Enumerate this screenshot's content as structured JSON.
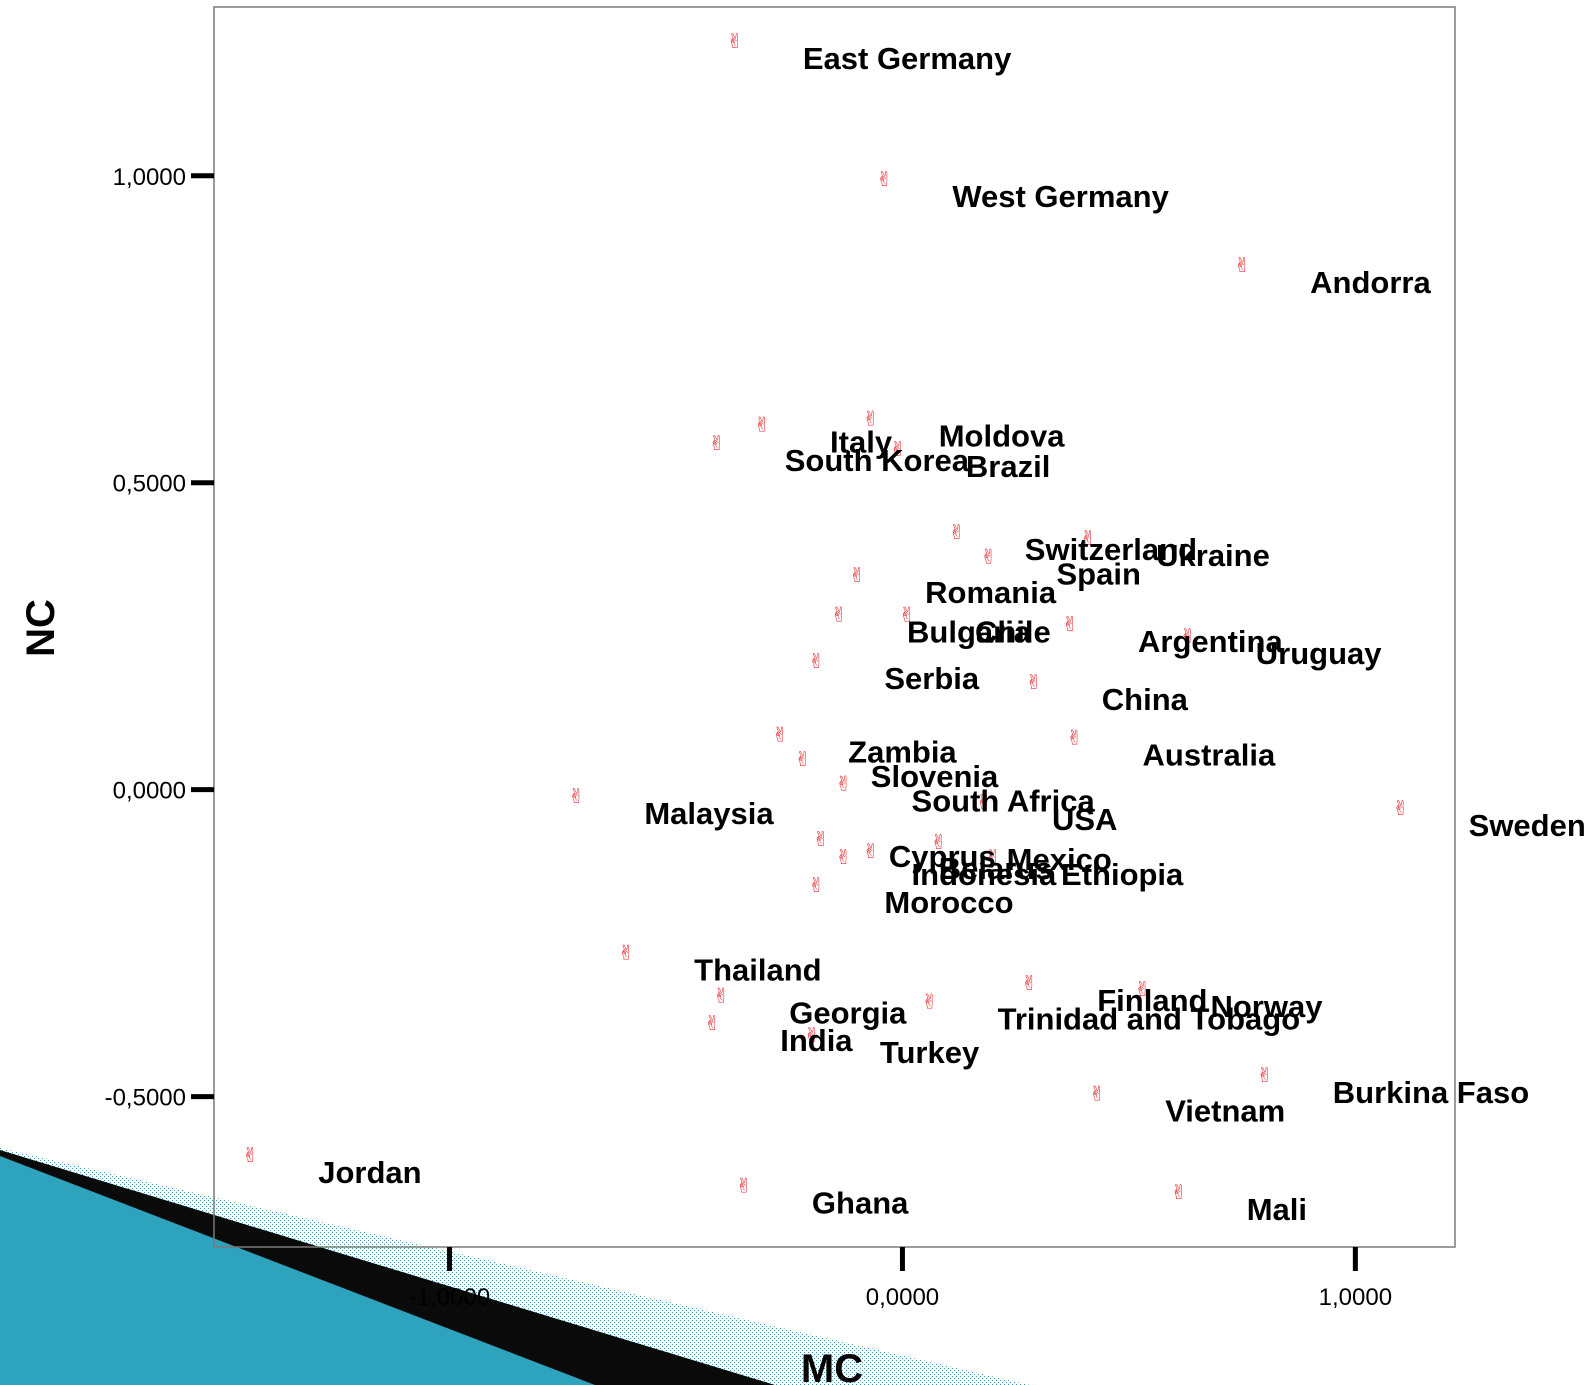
{
  "chart_data": {
    "type": "scatter",
    "xlabel": "MC",
    "ylabel": "NC",
    "xlim": [
      -1.52,
      1.22
    ],
    "ylim": [
      -0.745,
      1.275
    ],
    "x_ticks": [
      {
        "value": -1.0,
        "label": "-1,0000"
      },
      {
        "value": 0.0,
        "label": "0,0000"
      },
      {
        "value": 1.0,
        "label": "1,0000"
      }
    ],
    "y_ticks": [
      {
        "value": 1.0,
        "label": "1,0000"
      },
      {
        "value": 0.5,
        "label": "0,5000"
      },
      {
        "value": 0.0,
        "label": "0,0000"
      },
      {
        "value": -0.5,
        "label": "-0,5000"
      }
    ],
    "grid": false,
    "marker_symbol": "✌",
    "marker_color": "#e8343a",
    "points": [
      {
        "label": "East Germany",
        "x": -0.37,
        "y": 1.22
      },
      {
        "label": "West Germany",
        "x": -0.04,
        "y": 0.995
      },
      {
        "label": "Andorra",
        "x": 0.75,
        "y": 0.855
      },
      {
        "label": "Moldova",
        "x": -0.07,
        "y": 0.605
      },
      {
        "label": "Brazil",
        "x": -0.01,
        "y": 0.555
      },
      {
        "label": "South Korea",
        "x": -0.41,
        "y": 0.565
      },
      {
        "label": "Italy",
        "x": -0.31,
        "y": 0.595
      },
      {
        "label": "Ukraine",
        "x": 0.41,
        "y": 0.41
      },
      {
        "label": "Switzerland",
        "x": 0.12,
        "y": 0.42
      },
      {
        "label": "Spain",
        "x": 0.19,
        "y": 0.38
      },
      {
        "label": "Romania",
        "x": -0.1,
        "y": 0.35
      },
      {
        "label": "Bulgaria",
        "x": -0.14,
        "y": 0.285
      },
      {
        "label": "Chile",
        "x": 0.01,
        "y": 0.285
      },
      {
        "label": "Argentina",
        "x": 0.37,
        "y": 0.27
      },
      {
        "label": "Uruguay",
        "x": 0.63,
        "y": 0.25
      },
      {
        "label": "Serbia",
        "x": -0.19,
        "y": 0.21
      },
      {
        "label": "China",
        "x": 0.29,
        "y": 0.175
      },
      {
        "label": "Zambia",
        "x": -0.27,
        "y": 0.09
      },
      {
        "label": "Australia",
        "x": 0.38,
        "y": 0.085
      },
      {
        "label": "Slovenia",
        "x": -0.22,
        "y": 0.05
      },
      {
        "label": "Malaysia",
        "x": -0.72,
        "y": -0.01
      },
      {
        "label": "South Africa",
        "x": -0.13,
        "y": 0.01
      },
      {
        "label": "USA",
        "x": 0.18,
        "y": -0.02
      },
      {
        "label": "Sweden",
        "x": 1.1,
        "y": -0.03
      },
      {
        "label": "Cyprus",
        "x": -0.18,
        "y": -0.08
      },
      {
        "label": "Mexico",
        "x": 0.08,
        "y": -0.085
      },
      {
        "label": "Belarus",
        "x": -0.07,
        "y": -0.1
      },
      {
        "label": "Indonesia",
        "x": -0.13,
        "y": -0.11
      },
      {
        "label": "Ethiopia",
        "x": 0.2,
        "y": -0.11
      },
      {
        "label": "Morocco",
        "x": -0.19,
        "y": -0.155
      },
      {
        "label": "Thailand",
        "x": -0.61,
        "y": -0.265
      },
      {
        "label": "Finland",
        "x": 0.28,
        "y": -0.315
      },
      {
        "label": "Norway",
        "x": 0.53,
        "y": -0.325
      },
      {
        "label": "Trinidad and Tobago",
        "x": 0.06,
        "y": -0.345
      },
      {
        "label": "Georgia",
        "x": -0.4,
        "y": -0.335
      },
      {
        "label": "India",
        "x": -0.42,
        "y": -0.38
      },
      {
        "label": "Turkey",
        "x": -0.2,
        "y": -0.4
      },
      {
        "label": "Burkina Faso",
        "x": 0.8,
        "y": -0.465
      },
      {
        "label": "Vietnam",
        "x": 0.43,
        "y": -0.495
      },
      {
        "label": "Jordan",
        "x": -1.44,
        "y": -0.595
      },
      {
        "label": "Ghana",
        "x": -0.35,
        "y": -0.645
      },
      {
        "label": "Mali",
        "x": 0.61,
        "y": -0.655
      }
    ]
  }
}
